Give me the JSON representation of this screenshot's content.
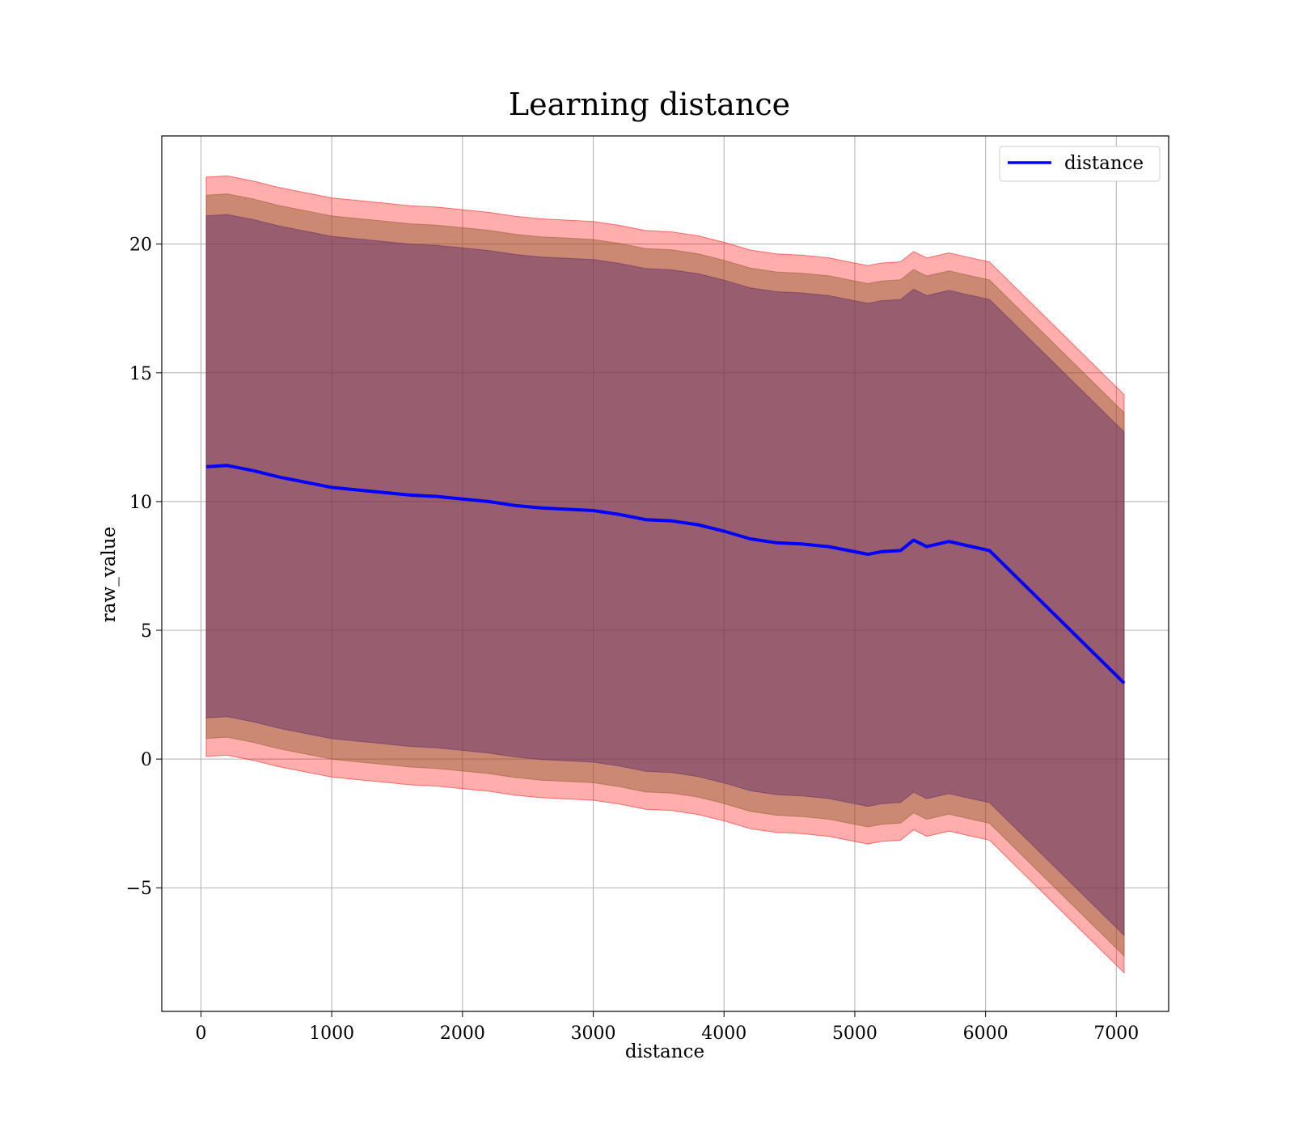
{
  "chart_data": {
    "type": "line",
    "title": "Learning distance",
    "xlabel": "distance",
    "ylabel": "raw_value",
    "xlim": [
      -300,
      7400
    ],
    "ylim": [
      -9.8,
      24.2
    ],
    "grid": true,
    "legend": {
      "placement": "top-right",
      "entries": [
        "distance"
      ]
    },
    "xticks": [
      0,
      1000,
      2000,
      3000,
      4000,
      5000,
      6000,
      7000
    ],
    "yticks": [
      -5,
      0,
      5,
      10,
      15,
      20
    ],
    "xtick_labels": [
      "0",
      "1000",
      "2000",
      "3000",
      "4000",
      "5000",
      "6000",
      "7000"
    ],
    "ytick_labels": [
      "−5",
      "0",
      "5",
      "10",
      "15",
      "20"
    ],
    "series": [
      {
        "name": "distance",
        "color": "#0000ff",
        "x": [
          40,
          200,
          400,
          600,
          800,
          1000,
          1200,
          1400,
          1600,
          1800,
          2000,
          2200,
          2400,
          2600,
          2800,
          3000,
          3200,
          3400,
          3600,
          3800,
          4000,
          4200,
          4400,
          4600,
          4800,
          5000,
          5100,
          5200,
          5350,
          5450,
          5550,
          5720,
          5850,
          6030,
          7060
        ],
        "y": [
          11.35,
          11.4,
          11.2,
          10.95,
          10.75,
          10.55,
          10.45,
          10.35,
          10.25,
          10.2,
          10.1,
          10.0,
          9.85,
          9.75,
          9.7,
          9.65,
          9.5,
          9.3,
          9.25,
          9.1,
          8.85,
          8.55,
          8.4,
          8.35,
          8.25,
          8.05,
          7.95,
          8.05,
          8.1,
          8.5,
          8.25,
          8.45,
          8.3,
          8.1,
          2.95
        ]
      }
    ],
    "bands": [
      {
        "label_shown": false,
        "color": "#ff0000",
        "opacity": 0.32,
        "offset_upper": 11.25,
        "offset_lower": 11.25
      },
      {
        "label_shown": false,
        "color": "#8b5a2b",
        "opacity": 0.45,
        "offset_upper": 10.55,
        "offset_lower": 10.55
      },
      {
        "label_shown": false,
        "color": "#5a2a6a",
        "opacity": 0.45,
        "offset_upper": 9.75,
        "offset_lower": 9.75
      }
    ],
    "band_spread_end": [
      {
        "offset_upper": 11.2,
        "offset_lower": 11.25
      },
      {
        "offset_upper": 10.5,
        "offset_lower": 10.6
      },
      {
        "offset_upper": 9.75,
        "offset_lower": 9.8
      }
    ]
  }
}
